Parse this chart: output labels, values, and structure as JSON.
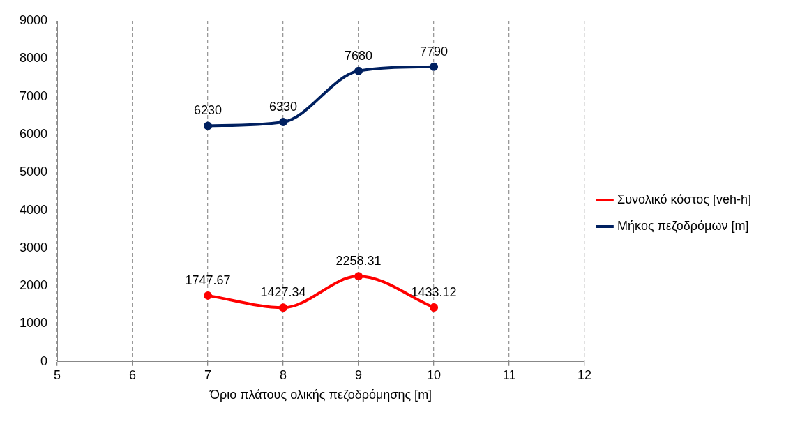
{
  "chart_data": {
    "type": "line",
    "xlabel": "Όριο πλάτους ολικής πεζοδρόμησης [m]",
    "x": [
      7,
      8,
      9,
      10
    ],
    "series": [
      {
        "name": "Συνολικό κόστος [veh-h]",
        "color": "#ff0000",
        "values": [
          1747.67,
          1427.34,
          2258.31,
          1433.12
        ]
      },
      {
        "name": "Μήκος πεζοδρόμων [m]",
        "color": "#002060",
        "values": [
          6230,
          6330,
          7680,
          7790
        ]
      }
    ],
    "xlim": [
      5,
      12
    ],
    "xticks": [
      5,
      6,
      7,
      8,
      9,
      10,
      11,
      12
    ],
    "ylim": [
      0,
      9000
    ],
    "yticks": [
      0,
      1000,
      2000,
      3000,
      4000,
      5000,
      6000,
      7000,
      8000,
      9000
    ],
    "grid": "x",
    "legend": "right",
    "marker": "circle",
    "line_style": "solid",
    "data_labels": true
  }
}
